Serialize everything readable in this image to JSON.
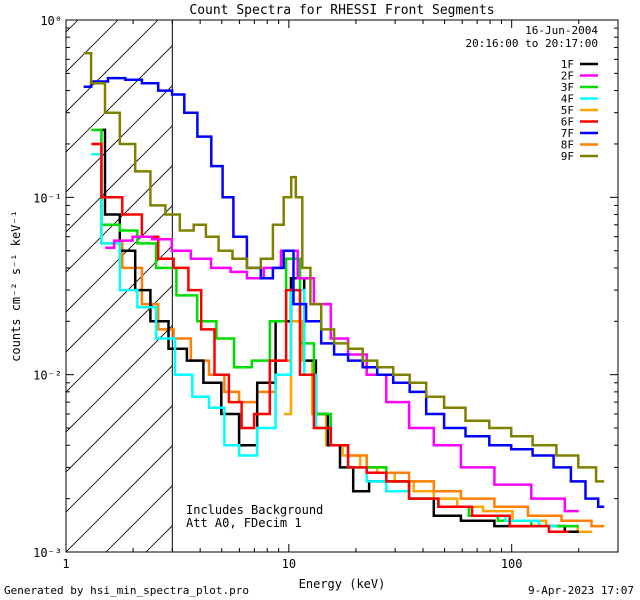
{
  "chart_data": {
    "type": "line",
    "title": "Count Spectra for RHESSI Front Segments",
    "xlabel": "Energy (keV)",
    "ylabel": "counts cm⁻² s⁻¹ keV⁻¹",
    "xscale": "log",
    "yscale": "log",
    "xlim": [
      1,
      300
    ],
    "ylim": [
      0.001,
      1
    ],
    "grid": false,
    "legend_position": "top-right",
    "x_tick_labels": [
      {
        "value": 1,
        "label": "1"
      },
      {
        "value": 10,
        "label": "10"
      },
      {
        "value": 100,
        "label": "100"
      }
    ],
    "y_tick_labels": [
      {
        "value": 1,
        "label": "10⁰"
      },
      {
        "value": 0.1,
        "label": "10⁻¹"
      },
      {
        "value": 0.01,
        "label": "10⁻²"
      },
      {
        "value": 0.001,
        "label": "10⁻³"
      }
    ],
    "hatched_region_keV": [
      1,
      3
    ],
    "annotations": {
      "date": "16-Jun-2004",
      "time_range": "20:16:00 to 20:17:00",
      "background_note": "Includes Background",
      "attenuator_note": "Att A0, FDecim 1"
    },
    "series": [
      {
        "name": "1F",
        "color": "#000000",
        "points": [
          [
            1.4,
            0.24
          ],
          [
            1.6,
            0.08
          ],
          [
            1.9,
            0.05
          ],
          [
            2.2,
            0.03
          ],
          [
            2.6,
            0.02
          ],
          [
            3.2,
            0.014
          ],
          [
            3.8,
            0.012
          ],
          [
            4.5,
            0.009
          ],
          [
            5.5,
            0.006
          ],
          [
            6.5,
            0.004
          ],
          [
            8,
            0.009
          ],
          [
            9.5,
            0.02
          ],
          [
            11,
            0.035
          ],
          [
            12.5,
            0.012
          ],
          [
            14,
            0.006
          ],
          [
            16,
            0.004
          ],
          [
            18,
            0.003
          ],
          [
            21,
            0.0022
          ],
          [
            25,
            0.0025
          ],
          [
            30,
            0.0025
          ],
          [
            40,
            0.002
          ],
          [
            50,
            0.0016
          ],
          [
            70,
            0.0015
          ],
          [
            100,
            0.0014
          ],
          [
            150,
            0.0014
          ],
          [
            200,
            0.0013
          ]
        ]
      },
      {
        "name": "2F",
        "color": "#ff00ff",
        "points": [
          [
            1.5,
            0.052
          ],
          [
            1.8,
            0.057
          ],
          [
            2.2,
            0.06
          ],
          [
            2.7,
            0.058
          ],
          [
            3.3,
            0.05
          ],
          [
            4,
            0.045
          ],
          [
            5,
            0.04
          ],
          [
            6,
            0.038
          ],
          [
            7,
            0.035
          ],
          [
            8.5,
            0.04
          ],
          [
            10,
            0.05
          ],
          [
            12,
            0.035
          ],
          [
            14,
            0.025
          ],
          [
            17,
            0.016
          ],
          [
            20,
            0.013
          ],
          [
            25,
            0.01
          ],
          [
            30,
            0.007
          ],
          [
            40,
            0.005
          ],
          [
            50,
            0.004
          ],
          [
            70,
            0.003
          ],
          [
            100,
            0.0024
          ],
          [
            150,
            0.002
          ],
          [
            200,
            0.0017
          ]
        ]
      },
      {
        "name": "3F",
        "color": "#00dd00",
        "points": [
          [
            1.3,
            0.24
          ],
          [
            1.6,
            0.07
          ],
          [
            1.9,
            0.065
          ],
          [
            2.3,
            0.055
          ],
          [
            2.8,
            0.04
          ],
          [
            3.5,
            0.028
          ],
          [
            4.3,
            0.02
          ],
          [
            5.2,
            0.016
          ],
          [
            6.2,
            0.011
          ],
          [
            7.5,
            0.012
          ],
          [
            9,
            0.02
          ],
          [
            10.5,
            0.045
          ],
          [
            12,
            0.015
          ],
          [
            14,
            0.006
          ],
          [
            17,
            0.004
          ],
          [
            20,
            0.003
          ],
          [
            25,
            0.003
          ],
          [
            30,
            0.0025
          ],
          [
            40,
            0.002
          ],
          [
            55,
            0.0018
          ],
          [
            75,
            0.0016
          ],
          [
            100,
            0.0015
          ],
          [
            150,
            0.0014
          ],
          [
            200,
            0.0014
          ]
        ]
      },
      {
        "name": "4F",
        "color": "#00ffff",
        "points": [
          [
            1.3,
            0.175
          ],
          [
            1.6,
            0.055
          ],
          [
            1.9,
            0.03
          ],
          [
            2.3,
            0.024
          ],
          [
            2.8,
            0.016
          ],
          [
            3.4,
            0.01
          ],
          [
            4,
            0.0075
          ],
          [
            4.8,
            0.0065
          ],
          [
            5.5,
            0.004
          ],
          [
            6.5,
            0.0035
          ],
          [
            8,
            0.005
          ],
          [
            9.5,
            0.01
          ],
          [
            11,
            0.03
          ],
          [
            12.5,
            0.01
          ],
          [
            14,
            0.005
          ],
          [
            17,
            0.004
          ],
          [
            20,
            0.003
          ],
          [
            25,
            0.0025
          ],
          [
            30,
            0.0022
          ],
          [
            40,
            0.002
          ],
          [
            55,
            0.0018
          ],
          [
            80,
            0.0016
          ],
          [
            110,
            0.0015
          ],
          [
            160,
            0.0014
          ]
        ]
      },
      {
        "name": "5F",
        "color": "#ffa500",
        "points": [
          [
            9.5,
            0.006
          ],
          [
            11,
            0.02
          ],
          [
            12,
            0.012
          ],
          [
            13.5,
            0.006
          ],
          [
            16,
            0.004
          ],
          [
            19,
            0.0035
          ],
          [
            23,
            0.003
          ],
          [
            27,
            0.0028
          ],
          [
            33,
            0.0025
          ],
          [
            40,
            0.0022
          ],
          [
            50,
            0.002
          ],
          [
            65,
            0.0018
          ],
          [
            85,
            0.0017
          ],
          [
            120,
            0.0015
          ],
          [
            170,
            0.0014
          ],
          [
            230,
            0.0013
          ]
        ]
      },
      {
        "name": "6F",
        "color": "#ff0000",
        "points": [
          [
            1.3,
            0.2
          ],
          [
            1.6,
            0.1
          ],
          [
            2,
            0.08
          ],
          [
            2.4,
            0.06
          ],
          [
            2.8,
            0.045
          ],
          [
            3.3,
            0.04
          ],
          [
            3.8,
            0.03
          ],
          [
            4.3,
            0.018
          ],
          [
            5,
            0.01
          ],
          [
            5.8,
            0.007
          ],
          [
            6.5,
            0.005
          ],
          [
            7.5,
            0.006
          ],
          [
            9,
            0.012
          ],
          [
            10.5,
            0.03
          ],
          [
            12,
            0.01
          ],
          [
            14,
            0.005
          ],
          [
            17,
            0.004
          ],
          [
            20,
            0.003
          ],
          [
            25,
            0.0028
          ],
          [
            30,
            0.0025
          ],
          [
            40,
            0.002
          ],
          [
            55,
            0.0018
          ],
          [
            80,
            0.0016
          ],
          [
            120,
            0.0014
          ],
          [
            180,
            0.0013
          ]
        ]
      },
      {
        "name": "7F",
        "color": "#0000ff",
        "points": [
          [
            1.2,
            0.42
          ],
          [
            1.4,
            0.45
          ],
          [
            1.7,
            0.47
          ],
          [
            2,
            0.46
          ],
          [
            2.4,
            0.44
          ],
          [
            2.8,
            0.4
          ],
          [
            3.2,
            0.38
          ],
          [
            3.6,
            0.3
          ],
          [
            4.2,
            0.22
          ],
          [
            4.8,
            0.15
          ],
          [
            5.3,
            0.1
          ],
          [
            6,
            0.06
          ],
          [
            7,
            0.04
          ],
          [
            8,
            0.035
          ],
          [
            9,
            0.04
          ],
          [
            10,
            0.05
          ],
          [
            11,
            0.025
          ],
          [
            13,
            0.02
          ],
          [
            15,
            0.015
          ],
          [
            17,
            0.013
          ],
          [
            20,
            0.012
          ],
          [
            23,
            0.011
          ],
          [
            27,
            0.01
          ],
          [
            32,
            0.009
          ],
          [
            38,
            0.008
          ],
          [
            45,
            0.006
          ],
          [
            55,
            0.005
          ],
          [
            70,
            0.0045
          ],
          [
            90,
            0.004
          ],
          [
            110,
            0.0038
          ],
          [
            140,
            0.0035
          ],
          [
            170,
            0.003
          ],
          [
            200,
            0.0025
          ],
          [
            230,
            0.002
          ],
          [
            260,
            0.0018
          ]
        ]
      },
      {
        "name": "8F",
        "color": "#ff7f00",
        "points": [
          [
            1.3,
            0.2
          ],
          [
            1.6,
            0.055
          ],
          [
            2,
            0.04
          ],
          [
            2.4,
            0.025
          ],
          [
            2.8,
            0.018
          ],
          [
            3.3,
            0.016
          ],
          [
            4,
            0.012
          ],
          [
            4.8,
            0.01
          ],
          [
            5.5,
            0.008
          ],
          [
            6.5,
            0.007
          ],
          [
            8,
            0.008
          ],
          [
            9.5,
            0.012
          ],
          [
            11,
            0.035
          ],
          [
            12.5,
            0.01
          ],
          [
            14,
            0.005
          ],
          [
            17,
            0.004
          ],
          [
            20,
            0.0035
          ],
          [
            25,
            0.003
          ],
          [
            30,
            0.0028
          ],
          [
            40,
            0.0025
          ],
          [
            50,
            0.0022
          ],
          [
            70,
            0.002
          ],
          [
            100,
            0.0018
          ],
          [
            140,
            0.0016
          ],
          [
            200,
            0.0015
          ],
          [
            260,
            0.0014
          ]
        ]
      },
      {
        "name": "9F",
        "color": "#808000",
        "points": [
          [
            1.2,
            0.65
          ],
          [
            1.4,
            0.44
          ],
          [
            1.6,
            0.3
          ],
          [
            1.9,
            0.2
          ],
          [
            2.2,
            0.14
          ],
          [
            2.6,
            0.09
          ],
          [
            3,
            0.08
          ],
          [
            3.5,
            0.065
          ],
          [
            4,
            0.07
          ],
          [
            4.5,
            0.06
          ],
          [
            5.2,
            0.05
          ],
          [
            6,
            0.045
          ],
          [
            7,
            0.04
          ],
          [
            8,
            0.045
          ],
          [
            9,
            0.07
          ],
          [
            10,
            0.1
          ],
          [
            10.5,
            0.13
          ],
          [
            11,
            0.1
          ],
          [
            12,
            0.04
          ],
          [
            13,
            0.025
          ],
          [
            15,
            0.018
          ],
          [
            17,
            0.015
          ],
          [
            20,
            0.014
          ],
          [
            23,
            0.012
          ],
          [
            27,
            0.011
          ],
          [
            32,
            0.01
          ],
          [
            38,
            0.009
          ],
          [
            45,
            0.0075
          ],
          [
            55,
            0.0065
          ],
          [
            70,
            0.0055
          ],
          [
            90,
            0.005
          ],
          [
            110,
            0.0045
          ],
          [
            140,
            0.004
          ],
          [
            180,
            0.0035
          ],
          [
            220,
            0.003
          ],
          [
            260,
            0.0025
          ]
        ]
      }
    ]
  },
  "footer": {
    "generated_by": "Generated by hsi_min_spectra_plot.pro",
    "timestamp": "9-Apr-2023 17:07"
  }
}
